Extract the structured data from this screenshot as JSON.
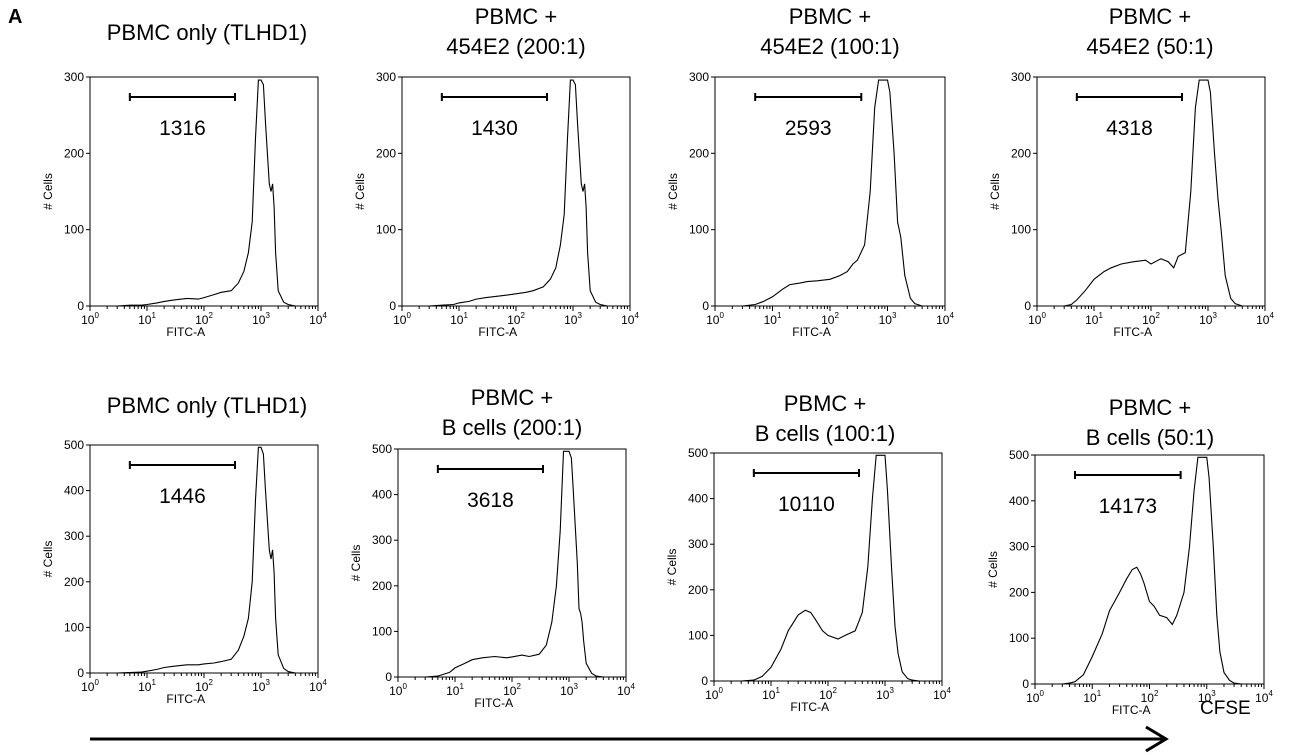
{
  "panel_label": "A",
  "bottom_axis_label": "CFSE",
  "chart_data": [
    {
      "type": "area",
      "title_lines": [
        "PBMC only (TLHD1)"
      ],
      "xlabel": "FITC-A",
      "ylabel": "# Cells",
      "xscale": "log",
      "xlim": [
        1,
        10000
      ],
      "ylim": [
        0,
        300
      ],
      "yticks": [
        0,
        100,
        200,
        300
      ],
      "gate": {
        "from": 5,
        "to": 350,
        "label": "1316"
      },
      "x": [
        1,
        3,
        5,
        8,
        10,
        15,
        20,
        30,
        50,
        80,
        100,
        150,
        200,
        300,
        400,
        500,
        600,
        700,
        800,
        900,
        1000,
        1100,
        1200,
        1400,
        1500,
        1600,
        1700,
        1800,
        2000,
        2500,
        3000,
        4000,
        10000
      ],
      "y": [
        0,
        0,
        1,
        1,
        2,
        4,
        6,
        8,
        10,
        9,
        11,
        15,
        18,
        20,
        30,
        45,
        70,
        110,
        220,
        296,
        296,
        290,
        240,
        160,
        150,
        160,
        130,
        70,
        20,
        5,
        2,
        0,
        0
      ]
    },
    {
      "type": "area",
      "title_lines": [
        "PBMC +",
        "454E2 (200:1)"
      ],
      "xlabel": "FITC-A",
      "ylabel": "# Cells",
      "xscale": "log",
      "xlim": [
        1,
        10000
      ],
      "ylim": [
        0,
        300
      ],
      "yticks": [
        0,
        100,
        200,
        300
      ],
      "gate": {
        "from": 5,
        "to": 350,
        "label": "1430"
      },
      "x": [
        1,
        3,
        5,
        8,
        10,
        15,
        20,
        30,
        50,
        80,
        100,
        150,
        200,
        300,
        400,
        500,
        600,
        700,
        800,
        900,
        1000,
        1100,
        1200,
        1400,
        1500,
        1600,
        1700,
        1800,
        2000,
        2500,
        3000,
        4000,
        10000
      ],
      "y": [
        0,
        0,
        1,
        2,
        4,
        6,
        9,
        11,
        13,
        15,
        16,
        18,
        20,
        25,
        35,
        50,
        80,
        120,
        220,
        296,
        296,
        290,
        240,
        160,
        150,
        160,
        130,
        70,
        20,
        5,
        2,
        0,
        0
      ]
    },
    {
      "type": "area",
      "title_lines": [
        "PBMC +",
        "454E2 (100:1)"
      ],
      "xlabel": "FITC-A",
      "ylabel": "# Cells",
      "xscale": "log",
      "xlim": [
        1,
        10000
      ],
      "ylim": [
        0,
        300
      ],
      "yticks": [
        0,
        100,
        200,
        300
      ],
      "gate": {
        "from": 5,
        "to": 350,
        "label": "2593"
      },
      "x": [
        1,
        3,
        5,
        7,
        10,
        15,
        20,
        30,
        40,
        60,
        100,
        150,
        200,
        250,
        300,
        400,
        500,
        600,
        700,
        800,
        900,
        1000,
        1100,
        1300,
        1500,
        1700,
        2000,
        2500,
        3000,
        4000,
        10000
      ],
      "y": [
        0,
        0,
        2,
        6,
        12,
        22,
        28,
        30,
        32,
        33,
        35,
        40,
        45,
        55,
        60,
        80,
        150,
        260,
        296,
        296,
        296,
        296,
        280,
        200,
        110,
        90,
        40,
        10,
        3,
        0,
        0
      ]
    },
    {
      "type": "area",
      "title_lines": [
        "PBMC +",
        "454E2 (50:1)"
      ],
      "xlabel": "FITC-A",
      "ylabel": "# Cells",
      "xscale": "log",
      "xlim": [
        1,
        10000
      ],
      "ylim": [
        0,
        300
      ],
      "yticks": [
        0,
        100,
        200,
        300
      ],
      "gate": {
        "from": 5,
        "to": 350,
        "label": "4318"
      },
      "x": [
        1,
        3,
        4,
        5,
        7,
        10,
        15,
        20,
        30,
        50,
        80,
        100,
        150,
        200,
        250,
        300,
        400,
        500,
        600,
        700,
        800,
        900,
        1000,
        1100,
        1300,
        1500,
        1700,
        2000,
        2500,
        3000,
        4000,
        10000
      ],
      "y": [
        0,
        0,
        2,
        8,
        20,
        35,
        45,
        50,
        55,
        58,
        60,
        55,
        62,
        58,
        50,
        65,
        70,
        150,
        260,
        296,
        296,
        296,
        296,
        280,
        200,
        140,
        100,
        40,
        10,
        3,
        0,
        0
      ]
    },
    {
      "type": "area",
      "title_lines": [
        "PBMC only (TLHD1)"
      ],
      "xlabel": "FITC-A",
      "ylabel": "# Cells",
      "xscale": "log",
      "xlim": [
        1,
        10000
      ],
      "ylim": [
        0,
        500
      ],
      "yticks": [
        0,
        100,
        200,
        300,
        400,
        500
      ],
      "gate": {
        "from": 5,
        "to": 350,
        "label": "1446"
      },
      "x": [
        1,
        3,
        5,
        8,
        10,
        15,
        20,
        30,
        50,
        80,
        100,
        150,
        200,
        300,
        400,
        500,
        600,
        700,
        800,
        900,
        1000,
        1100,
        1200,
        1400,
        1500,
        1600,
        1700,
        1800,
        2000,
        2500,
        3000,
        4000,
        10000
      ],
      "y": [
        0,
        0,
        1,
        2,
        4,
        8,
        12,
        15,
        18,
        18,
        20,
        22,
        25,
        30,
        50,
        80,
        120,
        200,
        380,
        495,
        495,
        480,
        400,
        270,
        250,
        270,
        220,
        120,
        40,
        10,
        3,
        0,
        0
      ]
    },
    {
      "type": "area",
      "title_lines": [
        "PBMC +",
        "B cells (200:1)"
      ],
      "xlabel": "FITC-A",
      "ylabel": "# Cells",
      "xscale": "log",
      "xlim": [
        1,
        10000
      ],
      "ylim": [
        0,
        500
      ],
      "yticks": [
        0,
        100,
        200,
        300,
        400,
        500
      ],
      "gate": {
        "from": 5,
        "to": 350,
        "label": "3618"
      },
      "x": [
        1,
        3,
        5,
        8,
        10,
        15,
        20,
        30,
        50,
        80,
        100,
        150,
        200,
        300,
        400,
        500,
        600,
        700,
        800,
        900,
        1000,
        1100,
        1200,
        1400,
        1500,
        1600,
        1700,
        1800,
        2000,
        2500,
        3000,
        4000,
        10000
      ],
      "y": [
        0,
        0,
        2,
        10,
        20,
        30,
        38,
        42,
        45,
        42,
        44,
        48,
        45,
        50,
        70,
        120,
        200,
        320,
        495,
        495,
        495,
        480,
        400,
        250,
        150,
        140,
        120,
        80,
        30,
        8,
        2,
        0,
        0
      ]
    },
    {
      "type": "area",
      "title_lines": [
        "PBMC +",
        "B cells (100:1)"
      ],
      "xlabel": "FITC-A",
      "ylabel": "# Cells",
      "xscale": "log",
      "xlim": [
        1,
        10000
      ],
      "ylim": [
        0,
        500
      ],
      "yticks": [
        0,
        100,
        200,
        300,
        400,
        500
      ],
      "gate": {
        "from": 5,
        "to": 350,
        "label": "10110"
      },
      "x": [
        1,
        3,
        5,
        7,
        10,
        15,
        20,
        30,
        40,
        50,
        60,
        80,
        100,
        150,
        200,
        300,
        400,
        500,
        600,
        700,
        800,
        900,
        1000,
        1100,
        1300,
        1500,
        1700,
        2000,
        2500,
        3000,
        4000,
        10000
      ],
      "y": [
        0,
        0,
        2,
        10,
        30,
        70,
        110,
        145,
        155,
        150,
        135,
        110,
        100,
        92,
        100,
        110,
        150,
        250,
        400,
        495,
        495,
        495,
        495,
        420,
        250,
        120,
        60,
        20,
        5,
        2,
        0,
        0
      ]
    },
    {
      "type": "area",
      "title_lines": [
        "PBMC +",
        "B cells (50:1)"
      ],
      "xlabel": "FITC-A",
      "ylabel": "# Cells",
      "xscale": "log",
      "xlim": [
        1,
        10000
      ],
      "ylim": [
        0,
        500
      ],
      "yticks": [
        0,
        100,
        200,
        300,
        400,
        500
      ],
      "gate": {
        "from": 5,
        "to": 350,
        "label": "14173"
      },
      "x": [
        1,
        3,
        4,
        5,
        7,
        10,
        15,
        20,
        30,
        40,
        50,
        60,
        70,
        80,
        100,
        120,
        150,
        200,
        250,
        300,
        400,
        500,
        600,
        700,
        800,
        900,
        1000,
        1100,
        1300,
        1500,
        1700,
        2000,
        2500,
        3000,
        4000,
        10000
      ],
      "y": [
        0,
        0,
        2,
        5,
        20,
        60,
        110,
        160,
        200,
        230,
        250,
        255,
        240,
        220,
        180,
        170,
        150,
        145,
        130,
        150,
        200,
        300,
        420,
        495,
        495,
        495,
        495,
        450,
        300,
        150,
        70,
        25,
        8,
        2,
        0,
        0
      ]
    }
  ]
}
